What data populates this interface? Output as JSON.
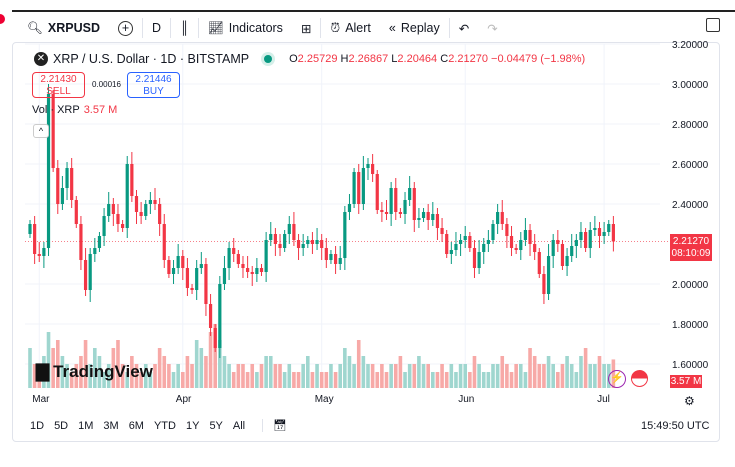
{
  "toolbar": {
    "symbol": "XRPUSD",
    "interval": "D",
    "indicators": "Indicators",
    "alert": "Alert",
    "replay": "Replay"
  },
  "legend": {
    "title": "XRP / U.S. Dollar · 1D · BITSTAMP",
    "o_label": "O",
    "o": "2.25729",
    "h_label": "H",
    "h": "2.26867",
    "l_label": "L",
    "l": "2.20464",
    "c_label": "C",
    "c": "2.21270",
    "change": "−0.04479 (−1.98%)"
  },
  "trade": {
    "sell_price": "2.21430",
    "sell_label": "SELL",
    "spread": "0.00016",
    "buy_price": "2.21446",
    "buy_label": "BUY"
  },
  "volume": {
    "label": "Vol · XRP",
    "value": "3.57 M",
    "tag": "3.57 M"
  },
  "price_tag": {
    "price": "2.21270",
    "countdown": "08:10:09"
  },
  "brand": "TradingView",
  "ranges": [
    "1D",
    "5D",
    "1M",
    "3M",
    "6M",
    "YTD",
    "1Y",
    "5Y",
    "All"
  ],
  "clock": "15:49:50 UTC",
  "colors": {
    "up": "#089981",
    "down": "#f23645",
    "up_vol": "#9fd6cf",
    "down_vol": "#f7a9a7"
  },
  "chart_data": {
    "type": "candlestick",
    "ylim": [
      1.5,
      3.2
    ],
    "y_ticks": [
      "3.20000",
      "3.00000",
      "2.80000",
      "2.60000",
      "2.40000",
      "2.00000",
      "1.80000",
      "1.60000"
    ],
    "y_tick_values": [
      3.2,
      3.0,
      2.8,
      2.6,
      2.4,
      2.0,
      1.8,
      1.6
    ],
    "x_ticks": [
      {
        "label": "Mar",
        "day": 2
      },
      {
        "label": "Apr",
        "day": 33
      },
      {
        "label": "May",
        "day": 63
      },
      {
        "label": "Jun",
        "day": 94
      },
      {
        "label": "Jul",
        "day": 124
      }
    ],
    "open_first": 2.25,
    "closes": [
      2.3,
      2.15,
      2.14,
      2.18,
      2.95,
      2.58,
      2.4,
      2.48,
      2.58,
      2.42,
      2.3,
      2.12,
      1.97,
      2.15,
      2.18,
      2.24,
      2.34,
      2.4,
      2.35,
      2.3,
      2.28,
      2.6,
      2.44,
      2.36,
      2.34,
      2.4,
      2.42,
      2.4,
      2.3,
      2.12,
      2.05,
      2.08,
      2.14,
      2.08,
      1.98,
      1.97,
      2.08,
      2.1,
      1.9,
      1.78,
      1.68,
      2.0,
      2.08,
      2.18,
      2.15,
      2.1,
      2.08,
      2.06,
      2.05,
      2.08,
      2.06,
      2.22,
      2.25,
      2.2,
      2.18,
      2.25,
      2.3,
      2.22,
      2.18,
      2.2,
      2.22,
      2.2,
      2.22,
      2.18,
      2.12,
      2.15,
      2.1,
      2.13,
      2.36,
      2.4,
      2.56,
      2.4,
      2.58,
      2.6,
      2.55,
      2.37,
      2.36,
      2.35,
      2.48,
      2.36,
      2.35,
      2.42,
      2.48,
      2.32,
      2.33,
      2.36,
      2.32,
      2.35,
      2.28,
      2.25,
      2.15,
      2.17,
      2.2,
      2.22,
      2.24,
      2.18,
      2.08,
      2.16,
      2.2,
      2.22,
      2.3,
      2.36,
      2.3,
      2.24,
      2.18,
      2.17,
      2.22,
      2.27,
      2.2,
      2.16,
      2.05,
      1.95,
      2.14,
      2.22,
      2.2,
      2.09,
      2.14,
      2.19,
      2.22,
      2.26,
      2.18,
      2.27,
      2.28,
      2.24,
      2.26,
      2.3,
      2.2127
    ],
    "volumes_m": [
      5,
      3,
      2,
      4,
      7,
      5,
      6,
      4,
      3,
      2,
      3,
      4,
      6,
      3,
      5,
      4,
      2,
      3,
      5,
      6,
      3,
      2,
      4,
      3,
      2,
      3,
      2,
      3,
      5,
      4,
      3,
      2,
      3,
      2,
      4,
      3,
      6,
      5,
      4,
      7,
      8,
      6,
      4,
      3,
      2,
      3,
      3,
      2,
      3,
      2,
      3,
      4,
      4,
      3,
      3,
      2,
      3,
      2,
      2,
      3,
      4,
      2,
      3,
      2,
      2,
      3,
      2,
      3,
      5,
      4,
      3,
      6,
      4,
      3,
      3,
      2,
      3,
      2,
      3,
      3,
      4,
      2,
      3,
      3,
      4,
      3,
      3,
      2,
      2,
      3,
      2,
      3,
      2,
      3,
      3,
      2,
      4,
      3,
      2,
      2,
      3,
      3,
      4,
      3,
      2,
      3,
      3,
      2,
      5,
      4,
      3,
      3,
      4,
      3,
      2,
      3,
      4,
      3,
      2,
      4,
      5,
      3,
      3,
      4,
      3,
      3,
      3.57
    ],
    "last_price": 2.2127
  }
}
